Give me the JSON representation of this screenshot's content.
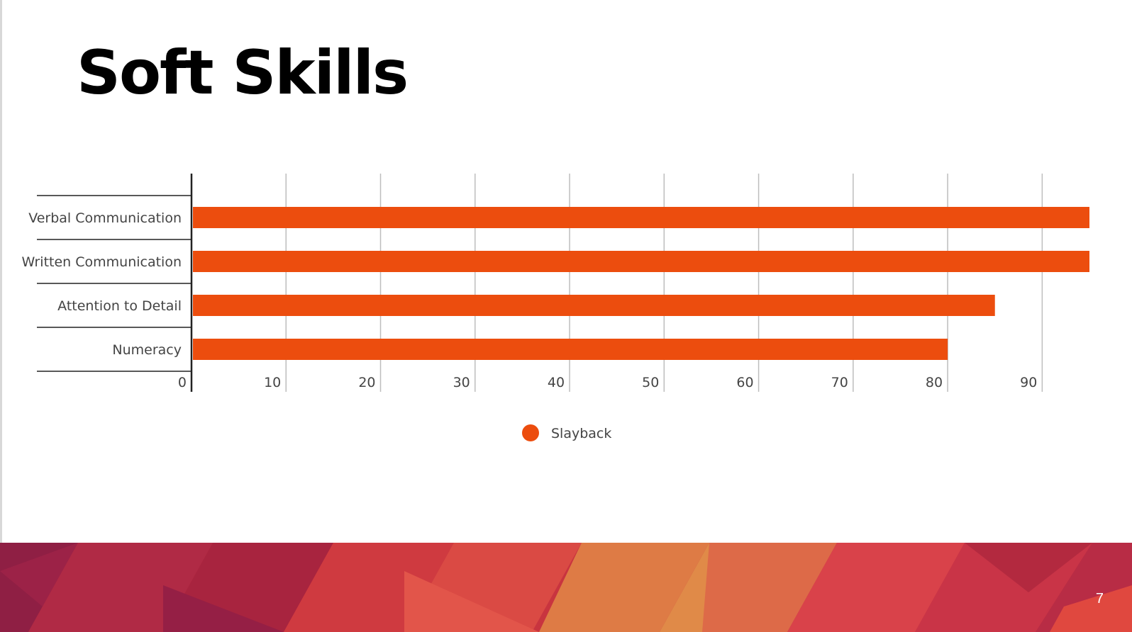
{
  "slide": {
    "title": "Soft Skills",
    "page_number": "7"
  },
  "colors": {
    "bar": "#EC4D0E",
    "gridline": "#bdbdbd",
    "axis": "#222222",
    "text": "#444444"
  },
  "chart_data": {
    "type": "bar",
    "orientation": "horizontal",
    "categories": [
      "Verbal Communication",
      "Written Communication",
      "Attention to Detail",
      "Numeracy"
    ],
    "series": [
      {
        "name": "Slayback",
        "values": [
          95,
          95,
          85,
          80
        ],
        "color": "#EC4D0E"
      }
    ],
    "xlim": [
      0,
      95
    ],
    "xticks": [
      0,
      10,
      20,
      30,
      40,
      50,
      60,
      70,
      80,
      90
    ],
    "grid": true,
    "legend": "bottom-center"
  }
}
